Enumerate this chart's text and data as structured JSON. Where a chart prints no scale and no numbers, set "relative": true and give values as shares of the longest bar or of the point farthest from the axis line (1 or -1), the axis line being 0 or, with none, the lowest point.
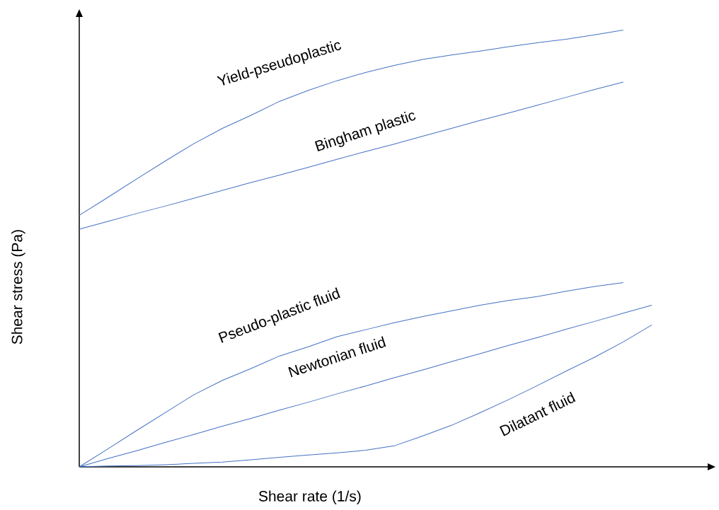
{
  "chart_data": {
    "type": "line",
    "relative": true,
    "xlabel": "Shear rate (1/s)",
    "ylabel": "Shear stress (Pa)",
    "categories": [
      null,
      null,
      null,
      null,
      null,
      null,
      null,
      null,
      null,
      null,
      null,
      null,
      null,
      null,
      null,
      null,
      null,
      null,
      null,
      null,
      null
    ],
    "series": [
      {
        "name": "Yield-pseudoplastic",
        "color": "#4472c4",
        "values": [
          0.576,
          0.617,
          0.659,
          0.7,
          0.74,
          0.775,
          0.805,
          0.837,
          0.862,
          0.884,
          0.903,
          0.919,
          0.933,
          0.943,
          0.952,
          0.962,
          0.971,
          0.979,
          0.989,
          1.0,
          null
        ]
      },
      {
        "name": "Bingham plastic",
        "color": "#4472c4",
        "values": [
          0.544,
          0.562,
          0.58,
          0.597,
          0.615,
          0.633,
          0.651,
          0.668,
          0.686,
          0.704,
          0.722,
          0.739,
          0.757,
          0.775,
          0.793,
          0.81,
          0.828,
          0.846,
          0.864,
          0.881,
          null
        ]
      },
      {
        "name": "Pseudo-plastic fluid",
        "color": "#4472c4",
        "values": [
          0,
          0.041,
          0.083,
          0.124,
          0.165,
          0.198,
          0.225,
          0.254,
          0.275,
          0.298,
          0.314,
          0.33,
          0.344,
          0.357,
          0.37,
          0.381,
          0.39,
          0.402,
          0.413,
          0.422,
          null
        ]
      },
      {
        "name": "Newtonian fluid",
        "color": "#4472c4",
        "values": [
          0,
          0.019,
          0.037,
          0.056,
          0.074,
          0.093,
          0.111,
          0.13,
          0.148,
          0.167,
          0.185,
          0.204,
          0.222,
          0.241,
          0.259,
          0.278,
          0.296,
          0.315,
          0.333,
          0.352,
          0.37
        ]
      },
      {
        "name": "Dilatant fluid",
        "color": "#4472c4",
        "values": [
          0,
          0.002,
          0.003,
          0.005,
          0.008,
          0.011,
          0.016,
          0.022,
          0.027,
          0.032,
          0.038,
          0.048,
          0.071,
          0.095,
          0.124,
          0.154,
          0.186,
          0.219,
          0.251,
          0.286,
          0.325
        ]
      }
    ]
  }
}
